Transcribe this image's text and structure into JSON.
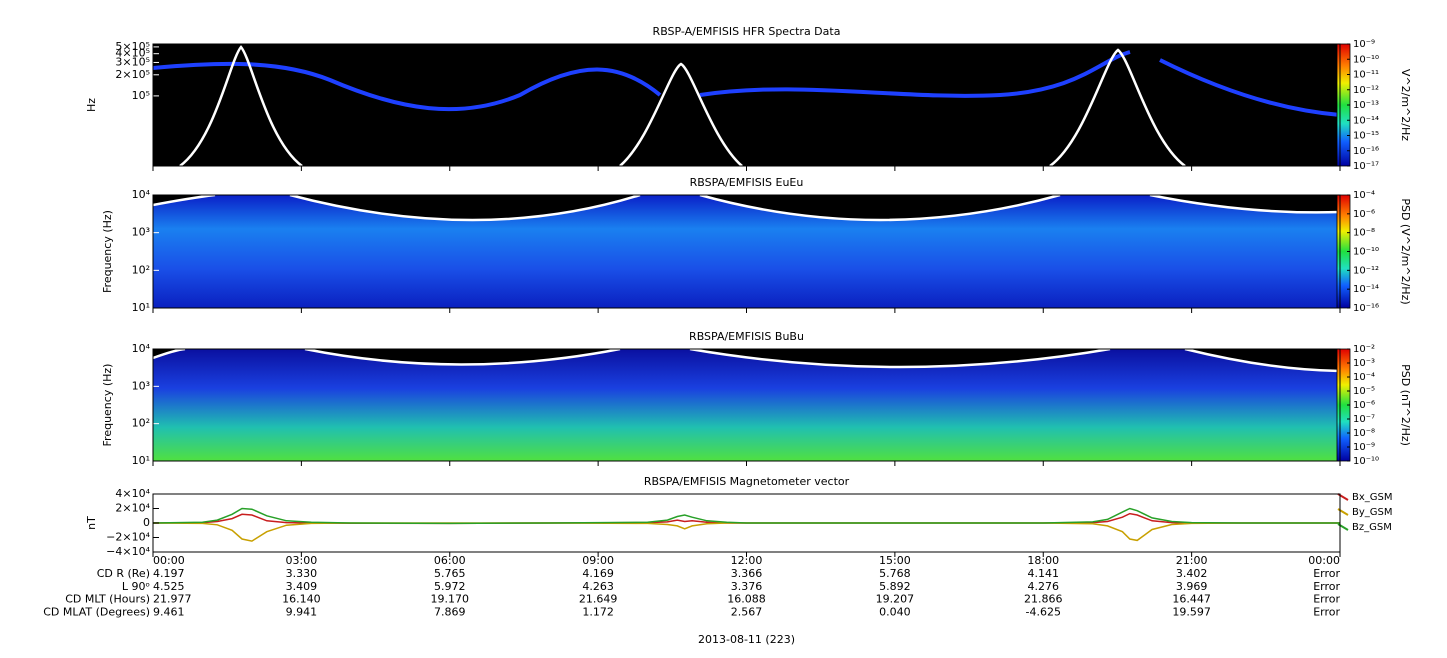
{
  "chart_data": [
    {
      "type": "spectrogram",
      "title": "RBSP-A/EMFISIS  HFR Spectra Data",
      "y_label": "Hz",
      "ylog": true,
      "ylim": [
        10000,
        550000
      ],
      "yticks": [
        {
          "value": 500000,
          "label": "5×10⁵"
        },
        {
          "value": 400000,
          "label": "4×10⁵"
        },
        {
          "value": 300000,
          "label": "3×10⁵"
        },
        {
          "value": 200000,
          "label": "2×10⁵"
        },
        {
          "value": 100000,
          "label": "10⁵"
        }
      ],
      "z_label": "V^2/m^2/Hz",
      "zlog": true,
      "zlim": [
        1e-17,
        1e-09
      ],
      "zticks": [
        {
          "value": 1e-09,
          "label": "10⁻⁹"
        },
        {
          "value": 1e-10,
          "label": "10⁻¹⁰"
        },
        {
          "value": 1e-11,
          "label": "10⁻¹¹"
        },
        {
          "value": 1e-12,
          "label": "10⁻¹²"
        },
        {
          "value": 1e-13,
          "label": "10⁻¹³"
        },
        {
          "value": 1e-14,
          "label": "10⁻¹⁴"
        },
        {
          "value": 1e-15,
          "label": "10⁻¹⁵"
        },
        {
          "value": 1e-16,
          "label": "10⁻¹⁶"
        },
        {
          "value": 1e-17,
          "label": "10⁻¹⁷"
        }
      ]
    },
    {
      "type": "spectrogram",
      "title": "RBSPA/EMFISIS  EuEu",
      "y_label": "Frequency (Hz)",
      "ylog": true,
      "ylim": [
        10,
        10000
      ],
      "yticks": [
        {
          "value": 10000,
          "label": "10⁴"
        },
        {
          "value": 1000,
          "label": "10³"
        },
        {
          "value": 100,
          "label": "10²"
        },
        {
          "value": 10,
          "label": "10¹"
        }
      ],
      "z_label": "PSD (V^2/m^2/Hz)",
      "zlog": true,
      "zlim": [
        1e-16,
        0.0001
      ],
      "zticks": [
        {
          "value": 0.0001,
          "label": "10⁻⁴"
        },
        {
          "value": 1e-06,
          "label": "10⁻⁶"
        },
        {
          "value": 1e-08,
          "label": "10⁻⁸"
        },
        {
          "value": 1e-10,
          "label": "10⁻¹⁰"
        },
        {
          "value": 1e-12,
          "label": "10⁻¹²"
        },
        {
          "value": 1e-14,
          "label": "10⁻¹⁴"
        },
        {
          "value": 1e-16,
          "label": "10⁻¹⁶"
        }
      ]
    },
    {
      "type": "spectrogram",
      "title": "RBSPA/EMFISIS  BuBu",
      "y_label": "Frequency (Hz)",
      "ylog": true,
      "ylim": [
        10,
        10000
      ],
      "yticks": [
        {
          "value": 10000,
          "label": "10⁴"
        },
        {
          "value": 1000,
          "label": "10³"
        },
        {
          "value": 100,
          "label": "10²"
        },
        {
          "value": 10,
          "label": "10¹"
        }
      ],
      "z_label": "PSD (nT^2/Hz)",
      "zlog": true,
      "zlim": [
        1e-10,
        0.01
      ],
      "zticks": [
        {
          "value": 0.01,
          "label": "10⁻²"
        },
        {
          "value": 0.001,
          "label": "10⁻³"
        },
        {
          "value": 0.0001,
          "label": "10⁻⁴"
        },
        {
          "value": 1e-05,
          "label": "10⁻⁵"
        },
        {
          "value": 1e-06,
          "label": "10⁻⁶"
        },
        {
          "value": 1e-07,
          "label": "10⁻⁷"
        },
        {
          "value": 1e-08,
          "label": "10⁻⁸"
        },
        {
          "value": 1e-09,
          "label": "10⁻⁹"
        },
        {
          "value": 1e-10,
          "label": "10⁻¹⁰"
        }
      ]
    },
    {
      "type": "line",
      "title": "RBSPA/EMFISIS  Magnetometer vector",
      "y_label": "nT",
      "xlim": [
        0,
        24
      ],
      "xticks": [
        {
          "value": 0,
          "label": "00:00"
        },
        {
          "value": 3,
          "label": "03:00"
        },
        {
          "value": 6,
          "label": "06:00"
        },
        {
          "value": 9,
          "label": "09:00"
        },
        {
          "value": 12,
          "label": "12:00"
        },
        {
          "value": 15,
          "label": "15:00"
        },
        {
          "value": 18,
          "label": "18:00"
        },
        {
          "value": 21,
          "label": "21:00"
        },
        {
          "value": 24,
          "label": "00:00"
        }
      ],
      "ylim": [
        -40000,
        40000
      ],
      "yticks": [
        {
          "value": 40000,
          "label": "4×10⁴"
        },
        {
          "value": 20000,
          "label": "2×10⁴"
        },
        0,
        {
          "value": -20000,
          "label": "−2×10⁴"
        },
        {
          "value": -40000,
          "label": "−4×10⁴"
        }
      ],
      "x": [
        0,
        1,
        1.3,
        1.6,
        1.8,
        2.0,
        2.3,
        2.7,
        3.2,
        4,
        6,
        8,
        10,
        10.4,
        10.6,
        10.75,
        10.9,
        11.2,
        11.6,
        12,
        14,
        16,
        18,
        19,
        19.3,
        19.6,
        19.75,
        19.9,
        20.2,
        20.6,
        21,
        22,
        24
      ],
      "series": [
        {
          "name": "Bx_GSM",
          "color": "#c81e1e",
          "values": [
            0,
            500,
            2000,
            6000,
            12000,
            11000,
            3000,
            500,
            0,
            -300,
            -500,
            0,
            500,
            1500,
            4000,
            2000,
            3000,
            1000,
            0,
            0,
            0,
            0,
            0,
            500,
            2000,
            8000,
            13000,
            11000,
            3000,
            500,
            0,
            0,
            0
          ]
        },
        {
          "name": "By_GSM",
          "color": "#c8a000",
          "values": [
            0,
            -500,
            -2500,
            -10000,
            -22000,
            -25000,
            -12000,
            -3000,
            -500,
            0,
            0,
            0,
            -500,
            -2000,
            -4000,
            -8000,
            -4000,
            -1000,
            0,
            0,
            0,
            0,
            0,
            -1000,
            -4000,
            -12000,
            -22000,
            -24000,
            -9000,
            -2000,
            -500,
            0,
            0
          ]
        },
        {
          "name": "Bz_GSM",
          "color": "#28a028",
          "values": [
            0,
            1000,
            4000,
            12000,
            20000,
            19000,
            10000,
            3000,
            1000,
            0,
            -500,
            0,
            1000,
            4000,
            9000,
            11000,
            8000,
            3000,
            1000,
            0,
            0,
            0,
            0,
            1500,
            5000,
            15000,
            20000,
            17000,
            7000,
            2000,
            500,
            0,
            0
          ]
        }
      ]
    }
  ],
  "ephemeris": {
    "rows": [
      {
        "label": "CD R (Re)",
        "values": [
          "4.197",
          "3.330",
          "5.765",
          "4.169",
          "3.366",
          "5.768",
          "4.141",
          "3.402",
          "Error"
        ]
      },
      {
        "label": "L 90ᵒ",
        "values": [
          "4.525",
          "3.409",
          "5.972",
          "4.263",
          "3.376",
          "5.892",
          "4.276",
          "3.969",
          "Error"
        ]
      },
      {
        "label": "CD MLT (Hours)",
        "values": [
          "21.977",
          "16.140",
          "19.170",
          "21.649",
          "16.088",
          "19.207",
          "21.866",
          "16.447",
          "Error"
        ]
      },
      {
        "label": "CD MLAT (Degrees)",
        "values": [
          "9.461",
          "9.941",
          "7.869",
          "1.172",
          "2.567",
          "0.040",
          "-4.625",
          "19.597",
          "Error"
        ]
      }
    ],
    "date": "2013-08-11 (223)"
  }
}
